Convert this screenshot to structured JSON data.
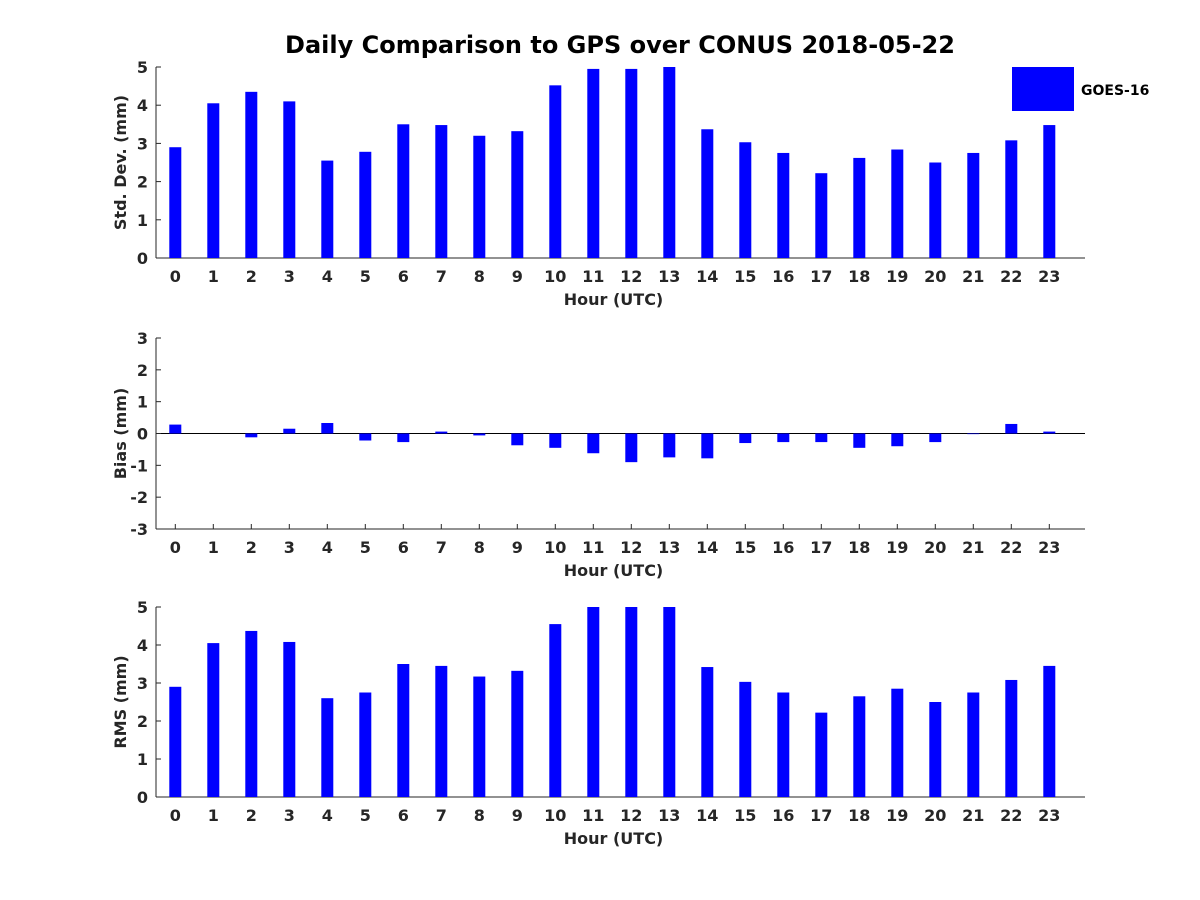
{
  "chart_title": "Daily Comparison to GPS over CONUS 2018-05-22",
  "legend_label": "GOES-16",
  "bar_color": "#0000ff",
  "chart_data": [
    {
      "type": "bar",
      "title": "Daily Comparison to GPS over CONUS 2018-05-22",
      "xlabel": "Hour (UTC)",
      "ylabel": "Std. Dev. (mm)",
      "ylim": [
        0,
        5
      ],
      "yticks": [
        0,
        1,
        2,
        3,
        4,
        5
      ],
      "categories": [
        "0",
        "1",
        "2",
        "3",
        "4",
        "5",
        "6",
        "7",
        "8",
        "9",
        "10",
        "11",
        "12",
        "13",
        "14",
        "15",
        "16",
        "17",
        "18",
        "19",
        "20",
        "21",
        "22",
        "23"
      ],
      "series": [
        {
          "name": "GOES-16",
          "values": [
            2.9,
            4.05,
            4.35,
            4.1,
            2.55,
            2.78,
            3.5,
            3.48,
            3.2,
            3.32,
            4.52,
            4.95,
            4.95,
            5.0,
            3.37,
            3.03,
            2.75,
            2.22,
            2.62,
            2.84,
            2.5,
            2.75,
            3.08,
            3.48
          ]
        }
      ],
      "legend": "top-right"
    },
    {
      "type": "bar",
      "xlabel": "Hour (UTC)",
      "ylabel": "Bias (mm)",
      "ylim": [
        -3,
        3
      ],
      "yticks": [
        -3,
        -2,
        -1,
        0,
        1,
        2,
        3
      ],
      "categories": [
        "0",
        "1",
        "2",
        "3",
        "4",
        "5",
        "6",
        "7",
        "8",
        "9",
        "10",
        "11",
        "12",
        "13",
        "14",
        "15",
        "16",
        "17",
        "18",
        "19",
        "20",
        "21",
        "22",
        "23"
      ],
      "series": [
        {
          "name": "GOES-16",
          "values": [
            0.28,
            0.0,
            -0.12,
            0.15,
            0.33,
            -0.22,
            -0.27,
            0.06,
            -0.06,
            -0.37,
            -0.45,
            -0.62,
            -0.9,
            -0.75,
            -0.78,
            -0.3,
            -0.27,
            -0.27,
            -0.45,
            -0.4,
            -0.27,
            -0.02,
            0.3,
            0.06
          ]
        }
      ]
    },
    {
      "type": "bar",
      "xlabel": "Hour (UTC)",
      "ylabel": "RMS (mm)",
      "ylim": [
        0,
        5
      ],
      "yticks": [
        0,
        1,
        2,
        3,
        4,
        5
      ],
      "categories": [
        "0",
        "1",
        "2",
        "3",
        "4",
        "5",
        "6",
        "7",
        "8",
        "9",
        "10",
        "11",
        "12",
        "13",
        "14",
        "15",
        "16",
        "17",
        "18",
        "19",
        "20",
        "21",
        "22",
        "23"
      ],
      "series": [
        {
          "name": "GOES-16",
          "values": [
            2.9,
            4.05,
            4.37,
            4.08,
            2.6,
            2.75,
            3.5,
            3.45,
            3.17,
            3.32,
            4.55,
            5.0,
            5.0,
            5.0,
            3.42,
            3.03,
            2.75,
            2.22,
            2.65,
            2.85,
            2.5,
            2.75,
            3.08,
            3.45
          ]
        }
      ]
    }
  ]
}
